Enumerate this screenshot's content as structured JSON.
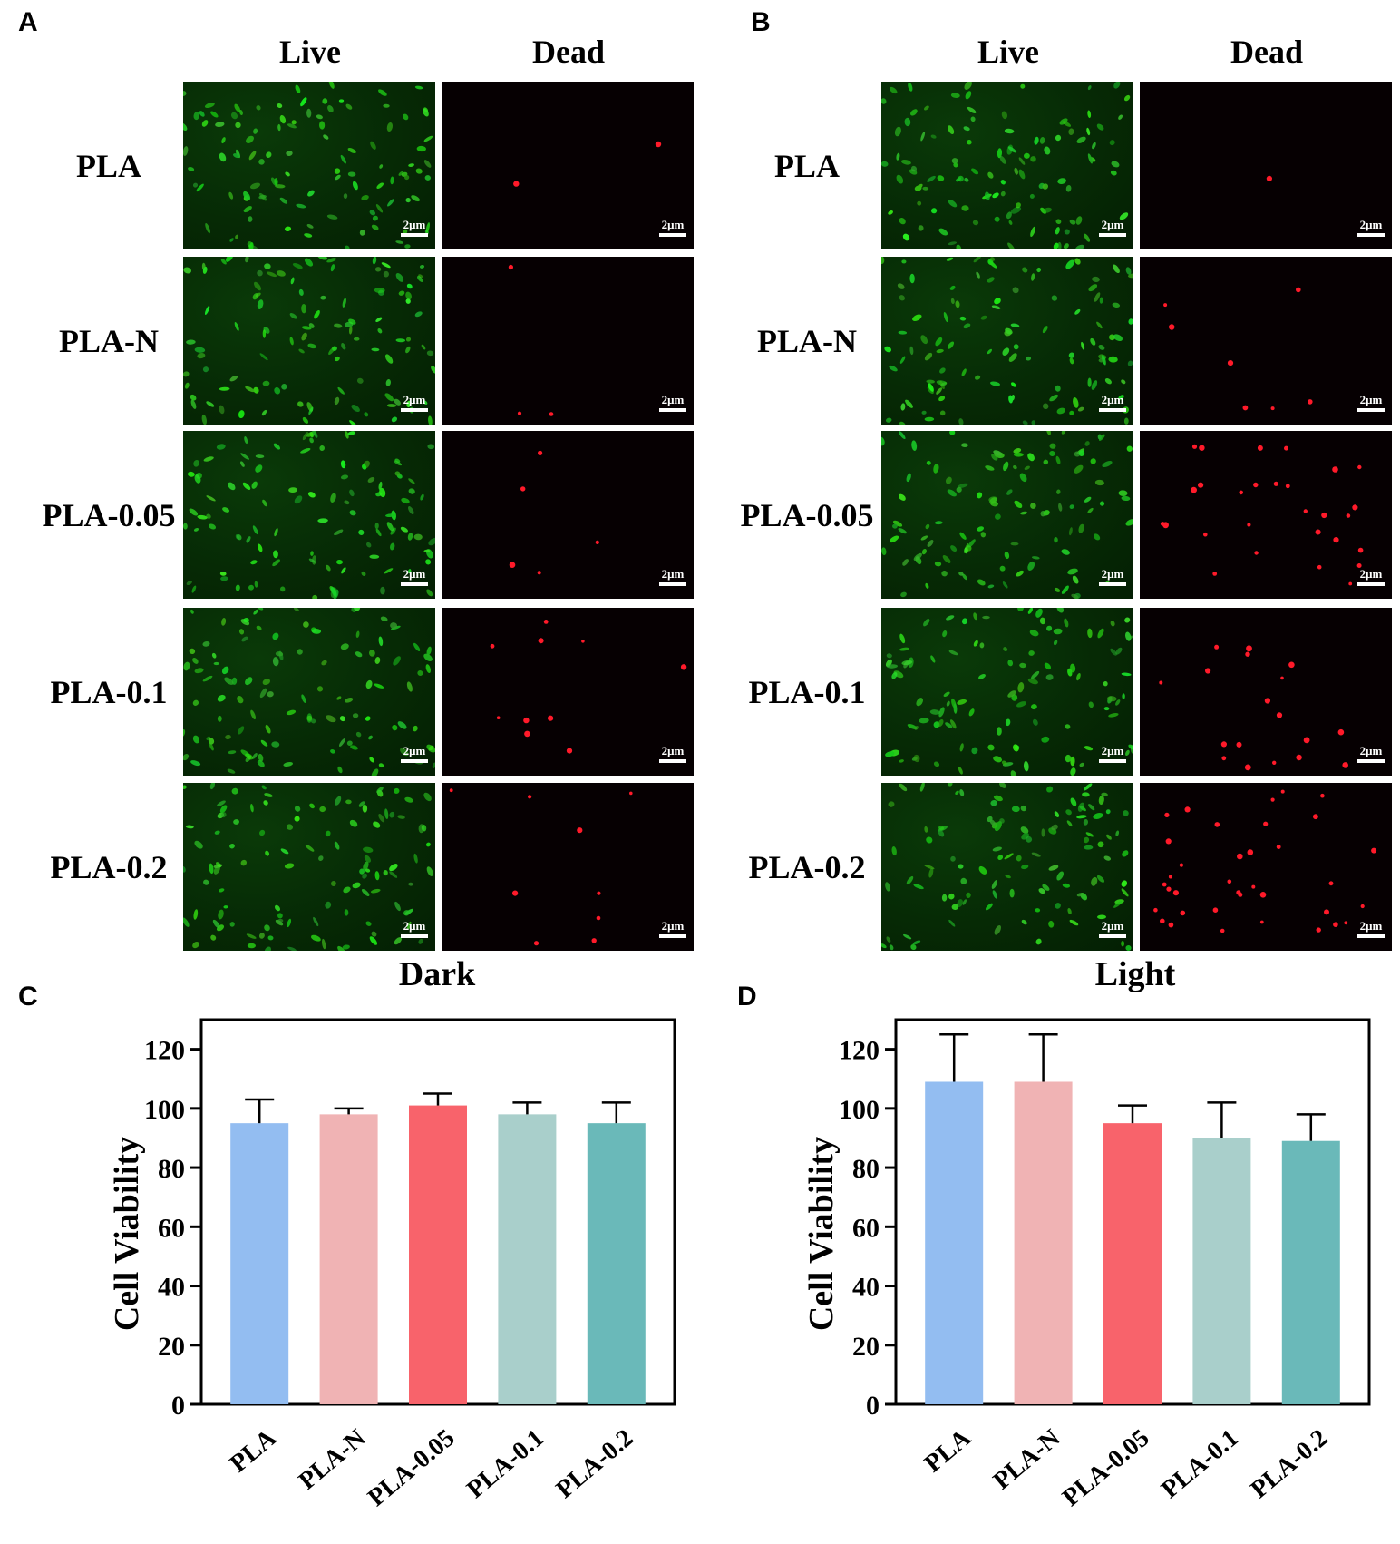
{
  "panels": {
    "a_letter": "A",
    "b_letter": "B",
    "c_letter": "C",
    "d_letter": "D"
  },
  "microscopy": {
    "column_headers": [
      "Live",
      "Dead"
    ],
    "row_labels": [
      "PLA",
      "PLA-N",
      "PLA-0.05",
      "PLA-0.1",
      "PLA-0.2"
    ],
    "scale_bar_label": "2μm",
    "colors": {
      "live_cell": "#2fd12a",
      "dead_cell": "#ff1a2a"
    }
  },
  "chart_data": [
    {
      "type": "bar",
      "title": "Dark",
      "xlabel": "",
      "ylabel": "Cell Viability",
      "categories": [
        "PLA",
        "PLA-N",
        "PLA-0.05",
        "PLA-0.1",
        "PLA-0.2"
      ],
      "values": [
        95,
        98,
        101,
        98,
        95
      ],
      "error": [
        8,
        2,
        4,
        4,
        7
      ],
      "colors": [
        "#93bdf1",
        "#f0b3b4",
        "#f8636b",
        "#a9cfcb",
        "#6ab9b9"
      ],
      "ylim": [
        0,
        130
      ],
      "yticks": [
        0,
        20,
        40,
        60,
        80,
        100,
        120
      ],
      "grid": false
    },
    {
      "type": "bar",
      "title": "Light",
      "xlabel": "",
      "ylabel": "Cell Viability",
      "categories": [
        "PLA",
        "PLA-N",
        "PLA-0.05",
        "PLA-0.1",
        "PLA-0.2"
      ],
      "values": [
        109,
        109,
        95,
        90,
        89
      ],
      "error": [
        16,
        16,
        6,
        12,
        9
      ],
      "colors": [
        "#93bdf1",
        "#f0b3b4",
        "#f8636b",
        "#a9cfcb",
        "#6ab9b9"
      ],
      "ylim": [
        0,
        130
      ],
      "yticks": [
        0,
        20,
        40,
        60,
        80,
        100,
        120
      ],
      "grid": false
    }
  ]
}
